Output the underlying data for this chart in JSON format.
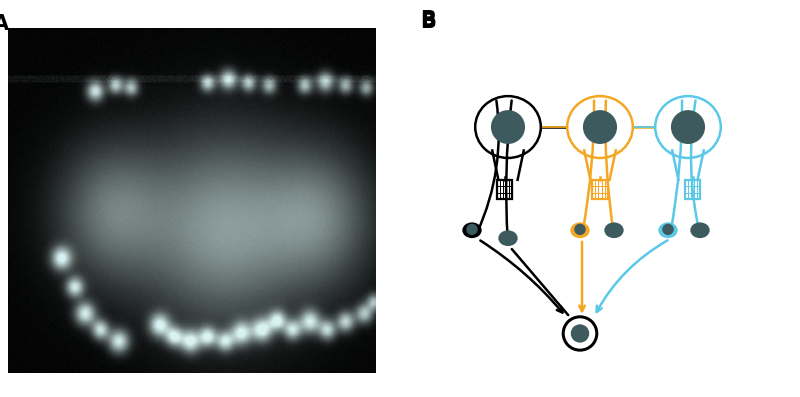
{
  "panel_a_label": "A",
  "panel_b_label": "B",
  "colors": {
    "black": "#000000",
    "orange": "#F5A623",
    "blue": "#5BC8E8",
    "dark_gray": "#3D5A5E",
    "white": "#FFFFFF",
    "bg": "#FFFFFF"
  },
  "figure_width": 8.0,
  "figure_height": 3.97
}
